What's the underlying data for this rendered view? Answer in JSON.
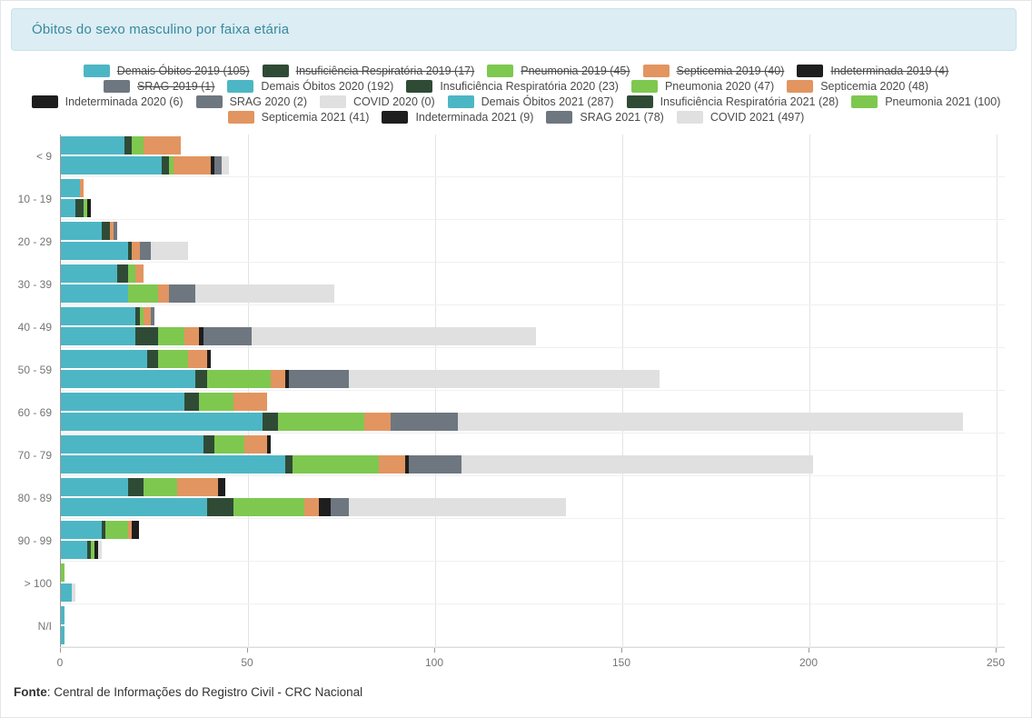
{
  "header": {
    "title": "Óbitos do sexo masculino por faixa etária"
  },
  "footer": {
    "label": "Fonte",
    "text": ": Central de Informações do Registro Civil - CRC Nacional"
  },
  "colors": {
    "demais": "#4db6c4",
    "insuficiencia": "#2f4b36",
    "pneumonia": "#7ec850",
    "septicemia": "#e29560",
    "indeterminada": "#1e1e1e",
    "srag": "#6e7780",
    "covid": "#e0e0e0"
  },
  "legend": {
    "rows": [
      [
        {
          "label": "Demais Óbitos 2019 (105)",
          "color": "demais",
          "struck": true
        },
        {
          "label": "Insuficiência Respiratória 2019 (17)",
          "color": "insuficiencia",
          "struck": true
        },
        {
          "label": "Pneumonia 2019 (45)",
          "color": "pneumonia",
          "struck": true
        },
        {
          "label": "Septicemia 2019 (40)",
          "color": "septicemia",
          "struck": true
        },
        {
          "label": "Indeterminada 2019 (4)",
          "color": "indeterminada",
          "struck": true
        }
      ],
      [
        {
          "label": "SRAG 2019 (1)",
          "color": "srag",
          "struck": true
        },
        {
          "label": "Demais Óbitos 2020 (192)",
          "color": "demais",
          "struck": false
        },
        {
          "label": "Insuficiência Respiratória 2020 (23)",
          "color": "insuficiencia",
          "struck": false
        },
        {
          "label": "Pneumonia 2020 (47)",
          "color": "pneumonia",
          "struck": false
        },
        {
          "label": "Septicemia 2020 (48)",
          "color": "septicemia",
          "struck": false
        }
      ],
      [
        {
          "label": "Indeterminada 2020 (6)",
          "color": "indeterminada",
          "struck": false
        },
        {
          "label": "SRAG 2020 (2)",
          "color": "srag",
          "struck": false
        },
        {
          "label": "COVID 2020 (0)",
          "color": "covid",
          "struck": false
        },
        {
          "label": "Demais Óbitos 2021 (287)",
          "color": "demais",
          "struck": false
        },
        {
          "label": "Insuficiência Respiratória 2021 (28)",
          "color": "insuficiencia",
          "struck": false
        },
        {
          "label": "Pneumonia 2021 (100)",
          "color": "pneumonia",
          "struck": false
        }
      ],
      [
        {
          "label": "Septicemia 2021 (41)",
          "color": "septicemia",
          "struck": false
        },
        {
          "label": "Indeterminada 2021 (9)",
          "color": "indeterminada",
          "struck": false
        },
        {
          "label": "SRAG 2021 (78)",
          "color": "srag",
          "struck": false
        },
        {
          "label": "COVID 2021 (497)",
          "color": "covid",
          "struck": false
        }
      ]
    ]
  },
  "chart_data": {
    "type": "bar",
    "orientation": "horizontal-stacked",
    "title": "Óbitos do sexo masculino por faixa etária",
    "categories": [
      "< 9",
      "10 - 19",
      "20 - 29",
      "30 - 39",
      "40 - 49",
      "50 - 59",
      "60 - 69",
      "70 - 79",
      "80 - 89",
      "90 - 99",
      "> 100",
      "N/I"
    ],
    "x_ticks": [
      0,
      50,
      100,
      150,
      200,
      250
    ],
    "xlim": [
      0,
      250
    ],
    "grid": "vertical",
    "legend_position": "top",
    "hidden_series": [
      {
        "name": "Demais Óbitos 2019",
        "total": 105
      },
      {
        "name": "Insuficiência Respiratória 2019",
        "total": 17
      },
      {
        "name": "Pneumonia 2019",
        "total": 45
      },
      {
        "name": "Septicemia 2019",
        "total": 40
      },
      {
        "name": "Indeterminada 2019",
        "total": 4
      },
      {
        "name": "SRAG 2019",
        "total": 1
      }
    ],
    "bar_groups": [
      "2020",
      "2021"
    ],
    "series": [
      {
        "name": "Demais Óbitos 2020",
        "group": "2020",
        "color": "demais",
        "total": 192,
        "values": [
          17,
          5,
          11,
          15,
          20,
          23,
          33,
          38,
          18,
          11,
          0,
          1
        ]
      },
      {
        "name": "Insuficiência Respiratória 2020",
        "group": "2020",
        "color": "insuficiencia",
        "total": 23,
        "values": [
          2,
          0,
          2,
          3,
          1,
          3,
          4,
          3,
          4,
          1,
          0,
          0
        ]
      },
      {
        "name": "Pneumonia 2020",
        "group": "2020",
        "color": "pneumonia",
        "total": 47,
        "values": [
          3,
          0,
          0,
          2,
          1,
          8,
          9,
          8,
          9,
          6,
          1,
          0
        ]
      },
      {
        "name": "Septicemia 2020",
        "group": "2020",
        "color": "septicemia",
        "total": 48,
        "values": [
          10,
          1,
          1,
          2,
          2,
          5,
          9,
          6,
          11,
          1,
          0,
          0
        ]
      },
      {
        "name": "Indeterminada 2020",
        "group": "2020",
        "color": "indeterminada",
        "total": 6,
        "values": [
          0,
          0,
          0,
          0,
          0,
          1,
          0,
          1,
          2,
          2,
          0,
          0
        ]
      },
      {
        "name": "SRAG 2020",
        "group": "2020",
        "color": "srag",
        "total": 2,
        "values": [
          0,
          0,
          1,
          0,
          1,
          0,
          0,
          0,
          0,
          0,
          0,
          0
        ]
      },
      {
        "name": "COVID 2020",
        "group": "2020",
        "color": "covid",
        "total": 0,
        "values": [
          0,
          0,
          0,
          0,
          0,
          0,
          0,
          0,
          0,
          0,
          0,
          0
        ]
      },
      {
        "name": "Demais Óbitos 2021",
        "group": "2021",
        "color": "demais",
        "total": 287,
        "values": [
          27,
          4,
          18,
          18,
          20,
          36,
          54,
          60,
          39,
          7,
          3,
          1
        ]
      },
      {
        "name": "Insuficiência Respiratória 2021",
        "group": "2021",
        "color": "insuficiencia",
        "total": 28,
        "values": [
          2,
          2,
          1,
          0,
          6,
          3,
          4,
          2,
          7,
          1,
          0,
          0
        ]
      },
      {
        "name": "Pneumonia 2021",
        "group": "2021",
        "color": "pneumonia",
        "total": 100,
        "values": [
          1,
          1,
          0,
          8,
          7,
          17,
          23,
          23,
          19,
          1,
          0,
          0
        ]
      },
      {
        "name": "Septicemia 2021",
        "group": "2021",
        "color": "septicemia",
        "total": 41,
        "values": [
          10,
          0,
          2,
          3,
          4,
          4,
          7,
          7,
          4,
          0,
          0,
          0
        ]
      },
      {
        "name": "Indeterminada 2021",
        "group": "2021",
        "color": "indeterminada",
        "total": 9,
        "values": [
          1,
          1,
          0,
          0,
          1,
          1,
          0,
          1,
          3,
          1,
          0,
          0
        ]
      },
      {
        "name": "SRAG 2021",
        "group": "2021",
        "color": "srag",
        "total": 78,
        "values": [
          2,
          0,
          3,
          7,
          13,
          16,
          18,
          14,
          5,
          0,
          0,
          0
        ]
      },
      {
        "name": "COVID 2021",
        "group": "2021",
        "color": "covid",
        "total": 497,
        "values": [
          2,
          0,
          10,
          37,
          76,
          83,
          135,
          94,
          58,
          1,
          1,
          0
        ]
      }
    ]
  }
}
